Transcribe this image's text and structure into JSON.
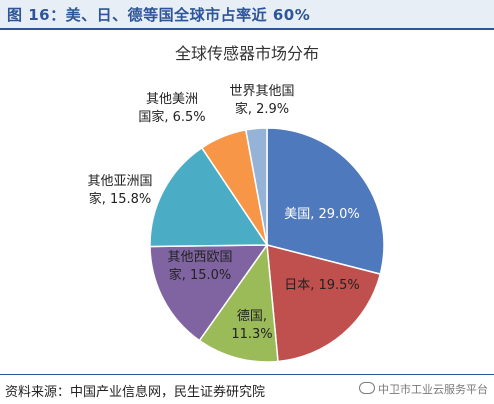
{
  "header": {
    "title": "图 16：美、日、德等国全球市占率近 60%"
  },
  "chart_data": {
    "type": "pie",
    "title": "全球传感器市场分布",
    "slices": [
      {
        "name": "美国",
        "value": 29.0,
        "line1": "美国, 29.0%",
        "line2": "",
        "color": "#4f79bd"
      },
      {
        "name": "日本",
        "value": 19.5,
        "line1": "日本, 19.5%",
        "line2": "",
        "color": "#c0504d"
      },
      {
        "name": "德国",
        "value": 11.3,
        "line1": "德国,",
        "line2": "11.3%",
        "color": "#9bbb59"
      },
      {
        "name": "其他西欧国家",
        "value": 15.0,
        "line1": "其他西欧国",
        "line2": "家, 15.0%",
        "color": "#8064a2"
      },
      {
        "name": "其他亚洲国家",
        "value": 15.8,
        "line1": "其他亚洲国",
        "line2": "家, 15.8%",
        "color": "#4bacc6"
      },
      {
        "name": "其他美洲国家",
        "value": 6.5,
        "line1": "其他美洲",
        "line2": "国家, 6.5%",
        "color": "#f79646"
      },
      {
        "name": "世界其他国家",
        "value": 2.9,
        "line1": "世界其他国",
        "line2": "家, 2.9%",
        "color": "#95b3d7"
      }
    ]
  },
  "footer": {
    "source": "资料来源：中国产业信息网，民生证券研究院",
    "watermark": "中卫市工业云服务平台"
  }
}
